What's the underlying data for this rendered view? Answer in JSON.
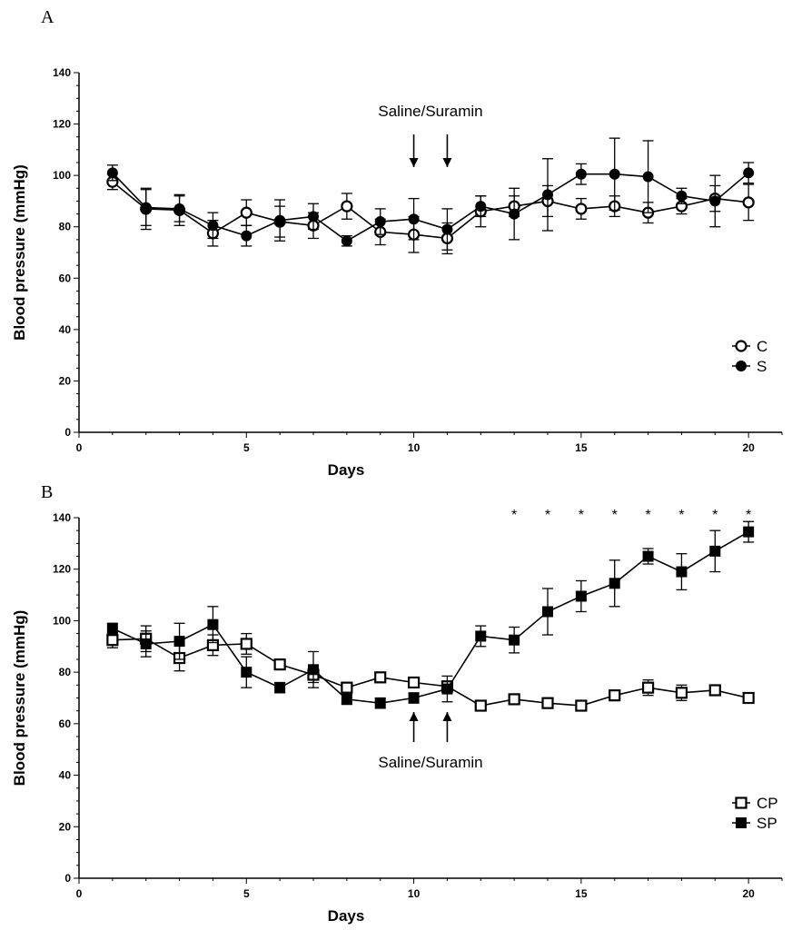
{
  "chart_data": [
    {
      "type": "line",
      "panel_label": "A",
      "xlabel": "Days",
      "ylabel": "Blood pressure (mmHg)",
      "xlim": [
        0,
        21
      ],
      "ylim": [
        0,
        140
      ],
      "xticks": [
        0,
        5,
        10,
        15,
        20
      ],
      "yticks": [
        0,
        20,
        40,
        60,
        80,
        100,
        120,
        140
      ],
      "legend_position": "bottom-right",
      "annotation": {
        "text": "Saline/Suramin",
        "arrow_days": [
          10,
          11
        ],
        "arrow_direction": "down"
      },
      "x": [
        1,
        2,
        3,
        4,
        5,
        6,
        7,
        8,
        9,
        10,
        11,
        12,
        13,
        14,
        15,
        16,
        17,
        18,
        19,
        20
      ],
      "series": [
        {
          "name": "C",
          "marker": "open-circle",
          "values": [
            97.5,
            87,
            86.5,
            77.5,
            85.5,
            82,
            80.5,
            88,
            78,
            77,
            75.5,
            86,
            88,
            90,
            87,
            88,
            85.5,
            88,
            91,
            89.5
          ],
          "errors": [
            3,
            8,
            6,
            5,
            5,
            6,
            5,
            5,
            5,
            7,
            6,
            6,
            4,
            6,
            4,
            4,
            4,
            3,
            5,
            7
          ]
        },
        {
          "name": "S",
          "marker": "filled-circle",
          "values": [
            101,
            87.5,
            87,
            80.5,
            76.5,
            82.5,
            84,
            74.5,
            82,
            83,
            79,
            88,
            85,
            92.5,
            100.5,
            100.5,
            99.5,
            92,
            90,
            101
          ],
          "errors": [
            3,
            7,
            5,
            5,
            4,
            8,
            5,
            2,
            5,
            8,
            8,
            4,
            10,
            14,
            4,
            14,
            14,
            3,
            10,
            4
          ]
        }
      ],
      "stars": []
    },
    {
      "type": "line",
      "panel_label": "B",
      "xlabel": "Days",
      "ylabel": "Blood pressure (mmHg)",
      "xlim": [
        0,
        21
      ],
      "ylim": [
        0,
        140
      ],
      "xticks": [
        0,
        5,
        10,
        15,
        20
      ],
      "yticks": [
        0,
        20,
        40,
        60,
        80,
        100,
        120,
        140
      ],
      "legend_position": "bottom-right",
      "annotation": {
        "text": "Saline/Suramin",
        "arrow_days": [
          10,
          11
        ],
        "arrow_direction": "up"
      },
      "x": [
        1,
        2,
        3,
        4,
        5,
        6,
        7,
        8,
        9,
        10,
        11,
        12,
        13,
        14,
        15,
        16,
        17,
        18,
        19,
        20
      ],
      "series": [
        {
          "name": "CP",
          "marker": "open-square",
          "values": [
            92.5,
            93,
            85.5,
            90.5,
            91,
            83,
            79,
            74,
            78,
            76,
            74.5,
            67,
            69.5,
            68,
            67,
            71,
            74,
            72,
            73,
            70
          ],
          "errors": [
            3,
            5,
            5,
            4,
            4,
            2,
            3,
            2,
            2,
            2,
            2,
            1,
            1,
            1,
            1,
            2,
            3,
            3,
            1,
            2
          ]
        },
        {
          "name": "SP",
          "marker": "filled-square",
          "values": [
            97,
            91,
            92,
            98.5,
            80,
            74,
            81,
            69.5,
            68,
            70,
            73.5,
            94,
            92.5,
            103.5,
            109.5,
            114.5,
            125,
            119,
            127,
            134.5
          ],
          "errors": [
            2,
            5,
            7,
            7,
            6,
            2,
            7,
            2,
            2,
            2,
            5,
            4,
            5,
            9,
            6,
            9,
            3,
            7,
            8,
            4
          ]
        }
      ],
      "stars": [
        {
          "x": 13,
          "text": "*"
        },
        {
          "x": 14,
          "text": "*"
        },
        {
          "x": 15,
          "text": "*"
        },
        {
          "x": 16,
          "text": "*"
        },
        {
          "x": 17,
          "text": "*"
        },
        {
          "x": 18,
          "text": "*"
        },
        {
          "x": 19,
          "text": "*"
        },
        {
          "x": 20,
          "text": "*"
        }
      ]
    }
  ]
}
